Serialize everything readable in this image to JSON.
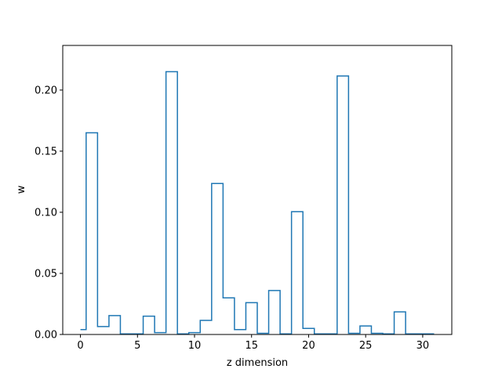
{
  "chart_data": {
    "type": "step",
    "title": "",
    "xlabel": "z dimension",
    "ylabel": "w",
    "xlim": [
      -1.55,
      32.55
    ],
    "ylim": [
      0,
      0.2365
    ],
    "xticks": [
      0,
      5,
      10,
      15,
      20,
      25,
      30
    ],
    "yticks": [
      0.0,
      0.05,
      0.1,
      0.15,
      0.2
    ],
    "xtick_labels": [
      "0",
      "5",
      "10",
      "15",
      "20",
      "25",
      "30"
    ],
    "ytick_labels": [
      "0.00",
      "0.05",
      "0.10",
      "0.15",
      "0.20"
    ],
    "grid": false,
    "line_color": "#1f77b4",
    "series": [
      {
        "x": [
          0,
          1,
          2,
          3,
          4,
          5,
          6,
          7,
          8,
          9,
          10,
          11,
          12,
          13,
          14,
          15,
          16,
          17,
          18,
          19,
          20,
          21,
          22,
          23,
          24,
          25,
          26,
          27,
          28,
          29,
          30,
          31
        ],
        "values": [
          0.004,
          0.165,
          0.0065,
          0.0155,
          0.0005,
          0.0005,
          0.015,
          0.0015,
          0.215,
          0.0005,
          0.0015,
          0.0115,
          0.1235,
          0.03,
          0.004,
          0.026,
          0.001,
          0.036,
          0.0005,
          0.1005,
          0.005,
          0.0005,
          0.0005,
          0.2115,
          0.001,
          0.007,
          0.001,
          0.0005,
          0.0185,
          0.0005,
          0.0005,
          0.0005
        ]
      }
    ]
  }
}
